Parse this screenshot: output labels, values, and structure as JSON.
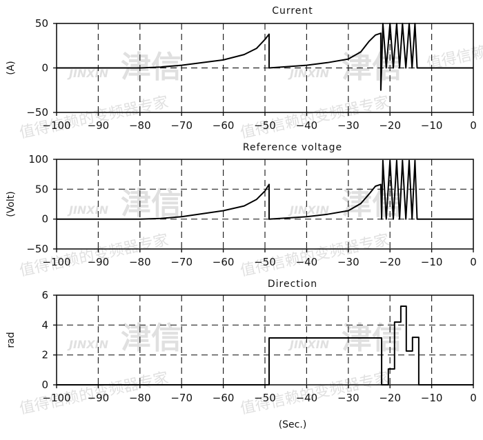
{
  "watermark": {
    "slogan": "值得信赖的变频器专家",
    "brand_latin": "JINXIN",
    "brand_cn": "津信"
  },
  "chart_data": [
    {
      "type": "line",
      "title": "Current",
      "ylabel": "(A)",
      "xlabel": "",
      "xlim": [
        -100,
        0
      ],
      "ylim": [
        -50,
        50
      ],
      "xticks": [
        -100,
        -90,
        -80,
        -70,
        -60,
        -50,
        -40,
        -30,
        -20,
        -10,
        0
      ],
      "yticks": [
        -50,
        0,
        50
      ],
      "grid": true,
      "series": [
        {
          "x": [
            -100,
            -80,
            -75,
            -70,
            -65,
            -60,
            -55,
            -52,
            -50,
            -49,
            -49,
            -40,
            -35,
            -30,
            -27,
            -25,
            -23.5,
            -22.2,
            -22.2,
            -22,
            -21.7,
            -20.9,
            -20,
            -19.2,
            -18.4,
            -17.7,
            -17,
            -16.2,
            -15.4,
            -14.7,
            -14,
            -13.5,
            0
          ],
          "y": [
            0,
            0,
            1,
            3,
            6,
            9,
            15,
            22,
            32,
            38,
            0,
            3,
            6,
            10,
            18,
            30,
            37,
            39,
            -25,
            0,
            50,
            0,
            50,
            0,
            50,
            0,
            50,
            0,
            50,
            0,
            50,
            0,
            0
          ]
        }
      ]
    },
    {
      "type": "line",
      "title": "Reference voltage",
      "ylabel": "(Volt)",
      "xlabel": "",
      "xlim": [
        -100,
        0
      ],
      "ylim": [
        -50,
        100
      ],
      "xticks": [
        -100,
        -90,
        -80,
        -70,
        -60,
        -50,
        -40,
        -30,
        -20,
        -10,
        0
      ],
      "yticks": [
        -50,
        0,
        50,
        100
      ],
      "grid": true,
      "series": [
        {
          "x": [
            -100,
            -80,
            -75,
            -70,
            -65,
            -60,
            -55,
            -52,
            -50,
            -49,
            -49,
            -40,
            -35,
            -30,
            -27,
            -25,
            -23.5,
            -22.2,
            -22,
            -21.7,
            -20.9,
            -20,
            -19.2,
            -18.4,
            -17.7,
            -17,
            -16.2,
            -15.4,
            -14.7,
            -14,
            -13.5,
            0
          ],
          "y": [
            0,
            0,
            1,
            4,
            9,
            14,
            22,
            33,
            47,
            58,
            0,
            4,
            8,
            14,
            26,
            42,
            55,
            58,
            0,
            98,
            0,
            98,
            0,
            98,
            0,
            98,
            0,
            98,
            0,
            98,
            0,
            0
          ]
        }
      ]
    },
    {
      "type": "line",
      "title": "Direction",
      "ylabel": "rad",
      "xlabel": "(Sec.)",
      "xlim": [
        -100,
        0
      ],
      "ylim": [
        0,
        6
      ],
      "xticks": [
        -100,
        -90,
        -80,
        -70,
        -60,
        -50,
        -40,
        -30,
        -20,
        -10,
        0
      ],
      "yticks": [
        0,
        2,
        4,
        6
      ],
      "grid": true,
      "series": [
        {
          "x": [
            -100,
            -49,
            -49,
            -22,
            -22,
            -20.4,
            -20.4,
            -18.9,
            -18.9,
            -17.4,
            -17.4,
            -16.1,
            -16.1,
            -14.6,
            -14.6,
            -13.1,
            -13.1,
            0
          ],
          "y": [
            0,
            0,
            3.14,
            3.14,
            0,
            0,
            1.06,
            1.06,
            4.2,
            4.2,
            5.26,
            5.26,
            2.26,
            2.26,
            3.18,
            3.18,
            0,
            0
          ]
        }
      ]
    }
  ]
}
